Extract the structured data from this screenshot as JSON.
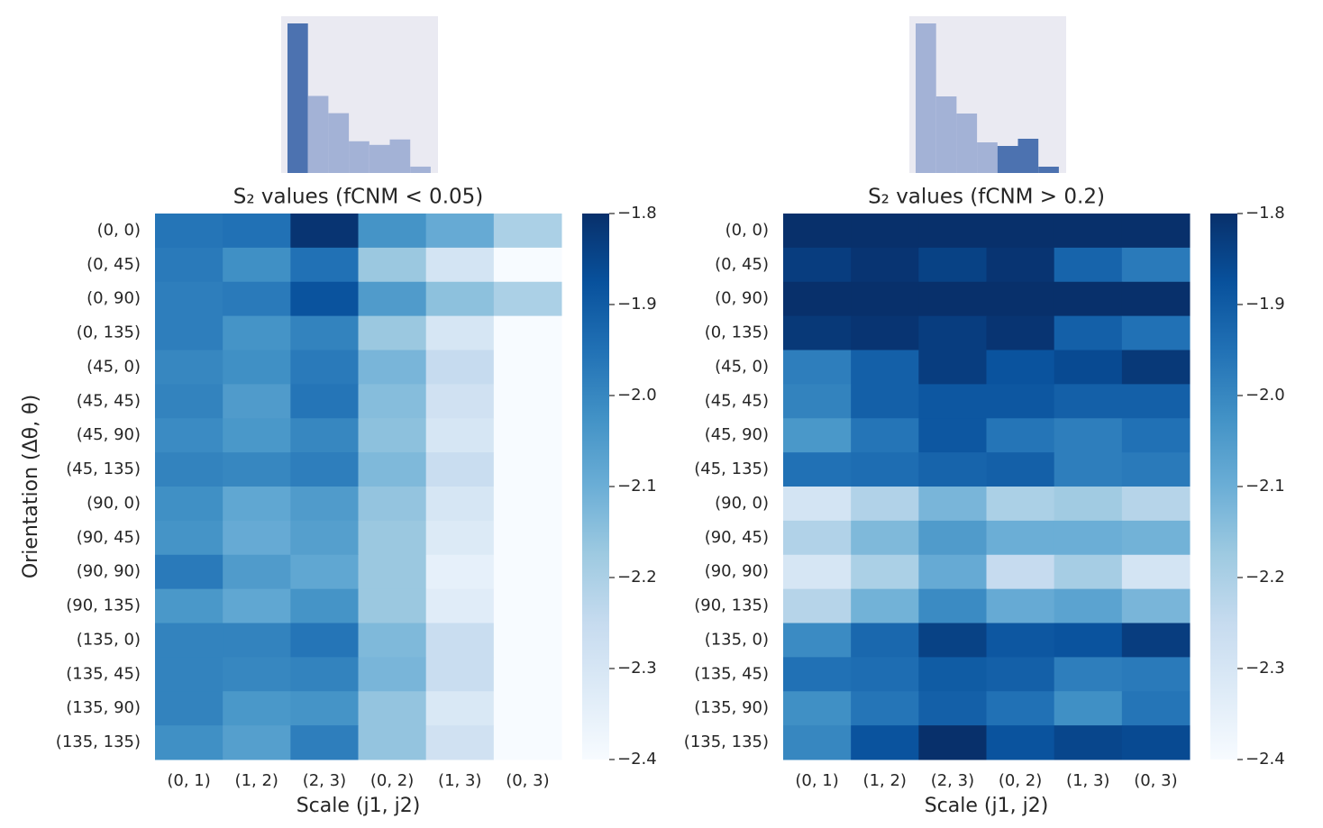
{
  "chart_data": [
    {
      "type": "heatmap",
      "title": "S₂ values (fCNM < 0.05)",
      "xlabel": "Scale (j1, j2)",
      "ylabel": "Orientation (Δθ, θ)",
      "x": [
        "(0, 1)",
        "(1, 2)",
        "(2, 3)",
        "(0, 2)",
        "(1, 3)",
        "(0, 3)"
      ],
      "y": [
        "(0, 0)",
        "(0, 45)",
        "(0, 90)",
        "(0, 135)",
        "(45, 0)",
        "(45, 45)",
        "(45, 90)",
        "(45, 135)",
        "(90, 0)",
        "(90, 45)",
        "(90, 90)",
        "(90, 135)",
        "(135, 0)",
        "(135, 45)",
        "(135, 90)",
        "(135, 135)"
      ],
      "values": [
        [
          -1.96,
          -1.95,
          -1.81,
          -2.03,
          -2.09,
          -2.2
        ],
        [
          -1.97,
          -2.02,
          -1.95,
          -2.17,
          -2.29,
          -2.4
        ],
        [
          -1.98,
          -1.97,
          -1.88,
          -2.05,
          -2.15,
          -2.2
        ],
        [
          -1.98,
          -2.03,
          -1.99,
          -2.17,
          -2.3,
          -2.4
        ],
        [
          -2.0,
          -2.02,
          -1.97,
          -2.12,
          -2.25,
          -2.4
        ],
        [
          -1.99,
          -2.05,
          -1.96,
          -2.14,
          -2.28,
          -2.4
        ],
        [
          -2.01,
          -2.04,
          -2.0,
          -2.15,
          -2.3,
          -2.4
        ],
        [
          -1.99,
          -2.0,
          -1.98,
          -2.13,
          -2.26,
          -2.4
        ],
        [
          -2.02,
          -2.08,
          -2.05,
          -2.16,
          -2.3,
          -2.4
        ],
        [
          -2.03,
          -2.09,
          -2.06,
          -2.17,
          -2.32,
          -2.4
        ],
        [
          -1.97,
          -2.05,
          -2.08,
          -2.17,
          -2.35,
          -2.4
        ],
        [
          -2.04,
          -2.08,
          -2.03,
          -2.17,
          -2.33,
          -2.4
        ],
        [
          -1.99,
          -1.99,
          -1.96,
          -2.13,
          -2.26,
          -2.4
        ],
        [
          -1.99,
          -2.0,
          -1.99,
          -2.12,
          -2.26,
          -2.4
        ],
        [
          -1.99,
          -2.04,
          -2.03,
          -2.16,
          -2.31,
          -2.4
        ],
        [
          -2.02,
          -2.06,
          -1.98,
          -2.16,
          -2.28,
          -2.4
        ]
      ],
      "colormap": "Blues",
      "zlim": [
        -2.4,
        -1.8
      ],
      "zticks": [
        {
          "value": -1.8,
          "label": "−1.8"
        },
        {
          "value": -1.9,
          "label": "−1.9"
        },
        {
          "value": -2.0,
          "label": "−2.0"
        },
        {
          "value": -2.1,
          "label": "−2.1"
        },
        {
          "value": -2.2,
          "label": "−2.2"
        },
        {
          "value": -2.3,
          "label": "−2.3"
        },
        {
          "value": -2.4,
          "label": "−2.4"
        }
      ],
      "histogram": {
        "counts": [
          165,
          85,
          66,
          35,
          31,
          37,
          7
        ],
        "colors": [
          "#4c72b0",
          "#a3b2d6",
          "#a3b2d6",
          "#a3b2d6",
          "#a3b2d6",
          "#a3b2d6",
          "#a3b2d6"
        ]
      }
    },
    {
      "type": "heatmap",
      "title": "S₂ values (fCNM > 0.2)",
      "xlabel": "Scale (j1, j2)",
      "x": [
        "(0, 1)",
        "(1, 2)",
        "(2, 3)",
        "(0, 2)",
        "(1, 3)",
        "(0, 3)"
      ],
      "y": [
        "(0, 0)",
        "(0, 45)",
        "(0, 90)",
        "(0, 135)",
        "(45, 0)",
        "(45, 45)",
        "(45, 90)",
        "(45, 135)",
        "(90, 0)",
        "(90, 45)",
        "(90, 90)",
        "(90, 135)",
        "(135, 0)",
        "(135, 45)",
        "(135, 90)",
        "(135, 135)"
      ],
      "values": [
        [
          -1.8,
          -1.8,
          -1.8,
          -1.8,
          -1.8,
          -1.8
        ],
        [
          -1.83,
          -1.81,
          -1.84,
          -1.81,
          -1.92,
          -1.97
        ],
        [
          -1.8,
          -1.8,
          -1.8,
          -1.8,
          -1.8,
          -1.8
        ],
        [
          -1.82,
          -1.81,
          -1.83,
          -1.81,
          -1.91,
          -1.95
        ],
        [
          -1.98,
          -1.91,
          -1.83,
          -1.88,
          -1.86,
          -1.82
        ],
        [
          -1.99,
          -1.91,
          -1.89,
          -1.89,
          -1.91,
          -1.91
        ],
        [
          -2.04,
          -1.96,
          -1.89,
          -1.96,
          -1.98,
          -1.95
        ],
        [
          -1.95,
          -1.94,
          -1.92,
          -1.91,
          -1.98,
          -1.97
        ],
        [
          -2.29,
          -2.21,
          -2.12,
          -2.2,
          -2.18,
          -2.22
        ],
        [
          -2.21,
          -2.13,
          -2.05,
          -2.1,
          -2.1,
          -2.11
        ],
        [
          -2.3,
          -2.2,
          -2.09,
          -2.25,
          -2.19,
          -2.29
        ],
        [
          -2.22,
          -2.11,
          -2.01,
          -2.09,
          -2.07,
          -2.12
        ],
        [
          -2.01,
          -1.93,
          -1.84,
          -1.89,
          -1.88,
          -1.83
        ],
        [
          -1.95,
          -1.94,
          -1.9,
          -1.91,
          -1.98,
          -1.97
        ],
        [
          -2.02,
          -1.96,
          -1.91,
          -1.95,
          -2.02,
          -1.96
        ],
        [
          -2.0,
          -1.88,
          -1.78,
          -1.88,
          -1.85,
          -1.86
        ]
      ],
      "colormap": "Blues",
      "zlim": [
        -2.4,
        -1.8
      ],
      "zticks": [
        {
          "value": -1.8,
          "label": "−1.8"
        },
        {
          "value": -1.9,
          "label": "−1.9"
        },
        {
          "value": -2.0,
          "label": "−2.0"
        },
        {
          "value": -2.1,
          "label": "−2.1"
        },
        {
          "value": -2.2,
          "label": "−2.2"
        },
        {
          "value": -2.3,
          "label": "−2.3"
        },
        {
          "value": -2.4,
          "label": "−2.4"
        }
      ],
      "histogram": {
        "counts": [
          166,
          85,
          66,
          34,
          30,
          38,
          7
        ],
        "colors": [
          "#a3b2d6",
          "#a3b2d6",
          "#a3b2d6",
          "#a3b2d6",
          "#4c72b0",
          "#4c72b0",
          "#4c72b0"
        ]
      }
    }
  ]
}
